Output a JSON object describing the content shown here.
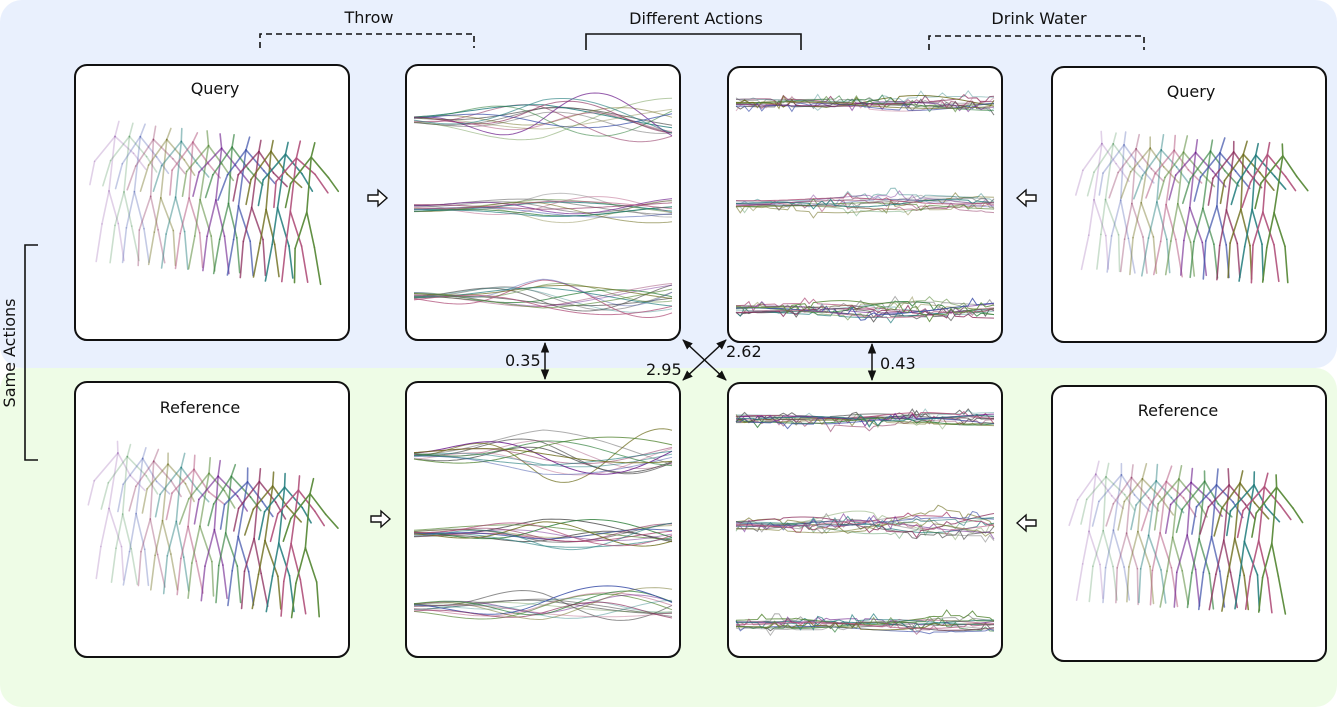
{
  "colors": {
    "query_band": "#e9f0fd",
    "reference_band": "#eefce6",
    "joint_palette": [
      "#6a1a8a",
      "#2f7f3a",
      "#3b4fa8",
      "#8a2a5a",
      "#6b6b1a",
      "#1f7a7a",
      "#b0507a",
      "#5a8a3a"
    ]
  },
  "groups": {
    "throw": "Throw",
    "different_actions": "Different Actions",
    "drink_water": "Drink Water",
    "same_actions": "Same Actions"
  },
  "panels": {
    "query_left": "Query",
    "query_right": "Query",
    "reference_left": "Reference",
    "reference_right": "Reference"
  },
  "distances": {
    "throw_query_vs_reference": "0.35",
    "cross_throw_reference_vs_drink_query": "2.62",
    "cross_throw_query_vs_drink_reference": "2.95",
    "drink_query_vs_reference": "0.43"
  },
  "icons": {
    "arrow_right": "hollow-arrow-right-icon",
    "arrow_left": "hollow-arrow-left-icon"
  }
}
